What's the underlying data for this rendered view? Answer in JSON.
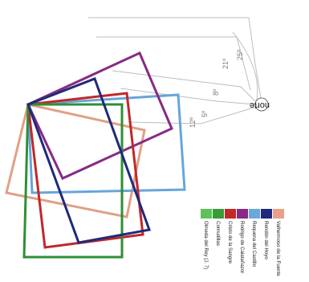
{
  "north_label": "norte",
  "angle_labels": [
    "25º",
    "21º",
    "8º",
    "5º",
    "12º"
  ],
  "legend": [
    {
      "label": "Valhermoso de la Fuente",
      "color": "#e8a088"
    },
    {
      "label": "Rendón del Hoyo",
      "color": "#1f2a7a"
    },
    {
      "label": "Requena del Castillo",
      "color": "#6aa8dc"
    },
    {
      "label": "Rodrigo de Calatañazor",
      "color": "#8a2a86"
    },
    {
      "label": "Cristo de la Sangre",
      "color": "#c0282a"
    },
    {
      "label": "Cornudillas",
      "color": "#3a9a3a"
    },
    {
      "label": "Olmeda del Rey (J. 7)",
      "color": "#5ec25a"
    }
  ]
}
